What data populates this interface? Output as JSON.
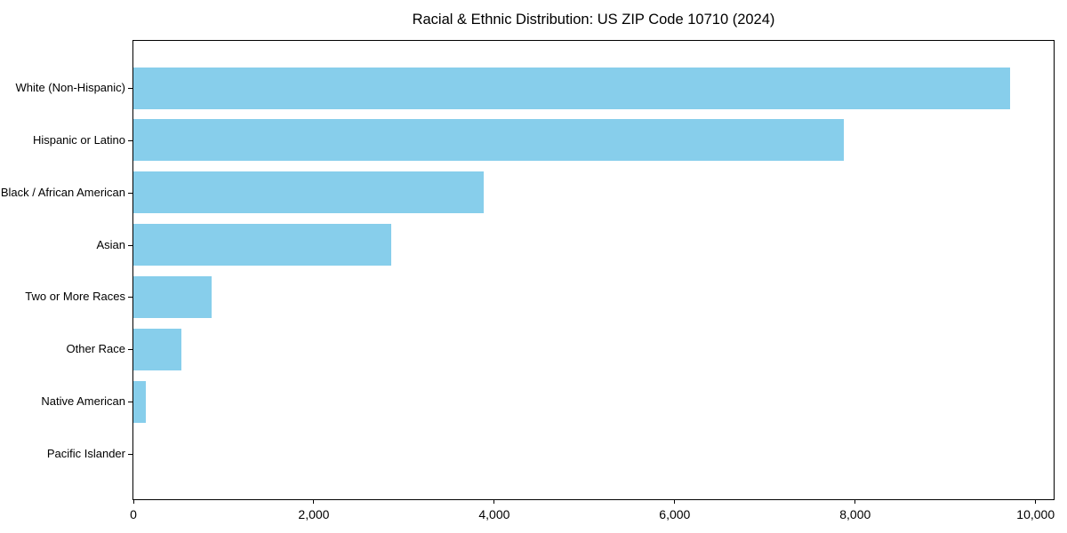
{
  "chart_data": {
    "type": "bar",
    "orientation": "horizontal",
    "title": "Racial & Ethnic Distribution: US ZIP Code 10710 (2024)",
    "categories": [
      "White (Non-Hispanic)",
      "Hispanic or Latino",
      "Black / African American",
      "Asian",
      "Two or More Races",
      "Other Race",
      "Native American",
      "Pacific Islander"
    ],
    "values": [
      9715,
      7875,
      3880,
      2855,
      865,
      530,
      140,
      0
    ],
    "xlabel": "",
    "ylabel": "",
    "xlim": [
      0,
      10200
    ],
    "x_ticks": [
      0,
      2000,
      4000,
      6000,
      8000,
      10000
    ],
    "x_tick_labels": [
      "0",
      "2,000",
      "4,000",
      "6,000",
      "8,000",
      "10,000"
    ],
    "bar_color": "#87CEEB",
    "axis_color": "#000000",
    "background_color": "#FFFFFF",
    "grid": false,
    "legend_position": "none"
  }
}
